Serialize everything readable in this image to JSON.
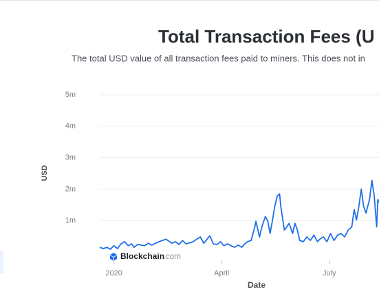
{
  "chart_data": {
    "type": "line",
    "title": "Total Transaction Fees (U",
    "subtitle": "The total USD value of all transaction fees paid to miners. This does not in",
    "y_label": "USD",
    "x_label": "Date",
    "watermark": "Blockchain",
    "watermark_suffix": ".com",
    "xlim": [
      -12,
      224
    ],
    "xticks": [
      {
        "value": 0,
        "label": "2020"
      },
      {
        "value": 91,
        "label": "April"
      },
      {
        "value": 182,
        "label": "July"
      }
    ],
    "ylim": [
      0,
      5000000
    ],
    "yticks": [
      {
        "value": 1000000,
        "label": "1m"
      },
      {
        "value": 2000000,
        "label": "2m"
      },
      {
        "value": 3000000,
        "label": "3m"
      },
      {
        "value": 4000000,
        "label": "4m"
      },
      {
        "value": 5000000,
        "label": "5m"
      }
    ],
    "grid": true,
    "series": [
      {
        "color": "#1e6fe8",
        "x": [
          -12,
          -9,
          -6,
          -3,
          0,
          3,
          6,
          9,
          12,
          15,
          17,
          20,
          26,
          29,
          32,
          38,
          41,
          44,
          47,
          49,
          52,
          55,
          58,
          61,
          67,
          70,
          73,
          76,
          78,
          81,
          84,
          87,
          90,
          93,
          96,
          99,
          102,
          105,
          108,
          110,
          113,
          116,
          119,
          120,
          123,
          125,
          128,
          130,
          132,
          134,
          136,
          138,
          140,
          141,
          144,
          145,
          148,
          151,
          153,
          155,
          157,
          160,
          163,
          166,
          169,
          172,
          174,
          177,
          180,
          183,
          186,
          189,
          192,
          195,
          198,
          201,
          203,
          205,
          207,
          209,
          211,
          213,
          216,
          218,
          220,
          222,
          223,
          224
        ],
        "values": [
          150000,
          110000,
          150000,
          90000,
          200000,
          110000,
          260000,
          330000,
          200000,
          260000,
          150000,
          240000,
          200000,
          280000,
          220000,
          330000,
          370000,
          410000,
          330000,
          280000,
          330000,
          240000,
          370000,
          260000,
          330000,
          410000,
          480000,
          280000,
          370000,
          520000,
          260000,
          240000,
          330000,
          200000,
          260000,
          200000,
          150000,
          220000,
          150000,
          240000,
          330000,
          370000,
          800000,
          980000,
          480000,
          800000,
          1130000,
          980000,
          590000,
          1020000,
          1460000,
          1780000,
          1850000,
          1460000,
          700000,
          740000,
          910000,
          590000,
          910000,
          700000,
          370000,
          330000,
          480000,
          370000,
          540000,
          330000,
          410000,
          480000,
          330000,
          590000,
          370000,
          540000,
          590000,
          480000,
          700000,
          800000,
          1350000,
          1020000,
          1460000,
          2000000,
          1460000,
          1240000,
          1670000,
          2280000,
          1780000,
          800000,
          1670000,
          1570000
        ]
      }
    ]
  }
}
